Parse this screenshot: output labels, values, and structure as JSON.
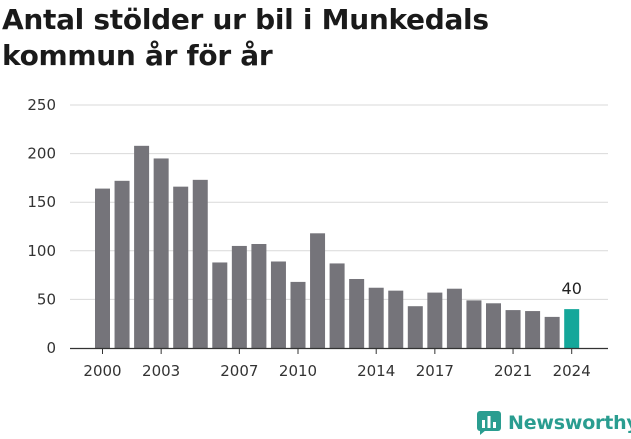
{
  "title": "Antal stölder ur bil i Munkedals kommun år för år",
  "brand": {
    "name": "Newsworthy",
    "icon": "newsworthy-logo-icon",
    "color": "#2a9d90"
  },
  "colors": {
    "bar": "#75747a",
    "highlight": "#14a79a",
    "grid": "#d9d9d9",
    "axis": "#333333"
  },
  "chart_data": {
    "type": "bar",
    "title": "Antal stölder ur bil i Munkedals kommun år för år",
    "xlabel": "",
    "ylabel": "",
    "ylim": [
      0,
      250
    ],
    "yticks": [
      0,
      50,
      100,
      150,
      200,
      250
    ],
    "grid": true,
    "categories": [
      2000,
      2001,
      2002,
      2003,
      2004,
      2005,
      2006,
      2007,
      2008,
      2009,
      2010,
      2011,
      2012,
      2013,
      2014,
      2015,
      2016,
      2017,
      2018,
      2019,
      2020,
      2021,
      2022,
      2023,
      2024
    ],
    "values": [
      164,
      172,
      208,
      195,
      166,
      173,
      88,
      105,
      107,
      89,
      68,
      118,
      87,
      71,
      62,
      59,
      43,
      57,
      61,
      49,
      46,
      39,
      38,
      32,
      40
    ],
    "xtick_labels": [
      2000,
      2003,
      2007,
      2010,
      2014,
      2017,
      2021,
      2024
    ],
    "highlight": {
      "category": 2024,
      "label": "40"
    }
  }
}
